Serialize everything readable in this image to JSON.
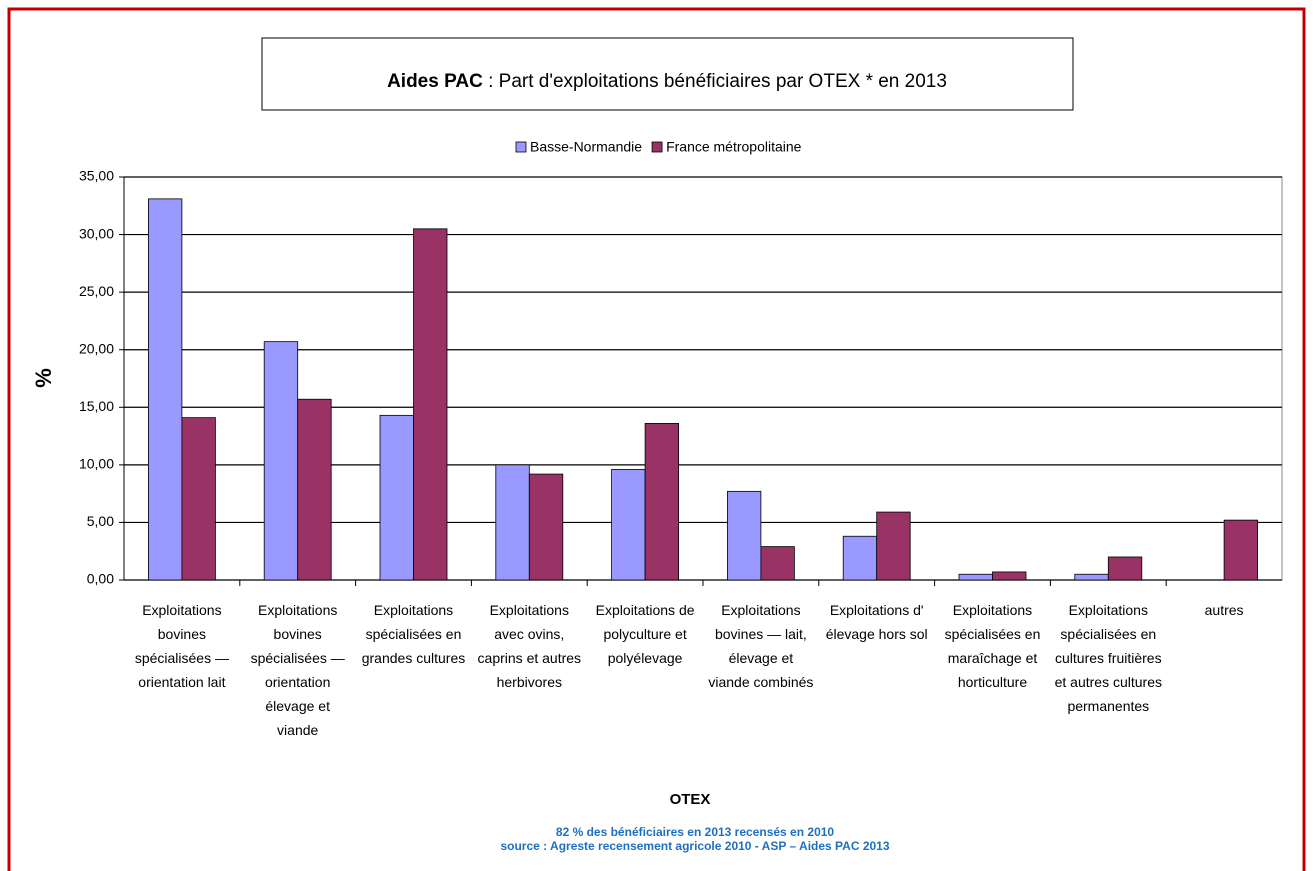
{
  "chart_data": {
    "type": "bar",
    "title_bold": "Aides PAC",
    "title": " : Part d'exploitations bénéficiaires par OTEX * en 2013",
    "xlabel": "OTEX",
    "ylabel": "%",
    "notes": [
      "82 % des bénéficiaires en 2013 recensés en 2010",
      "source : Agreste recensement agricole 2010 -  ASP – Aides PAC 2013"
    ],
    "categories": [
      "Exploitations bovines spécialisées — orientation lait",
      "Exploitations bovines spécialisées — orientation élevage et viande",
      "Exploitations spécialisées en grandes cultures",
      "Exploitations avec ovins, caprins et autres herbivores",
      "Exploitations de polyculture et polyélevage",
      "Exploitations bovines — lait, élevage et viande combinés",
      "Exploitations d' élevage hors sol",
      "Exploitations spécialisées en maraîchage et horticulture",
      "Exploitations spécialisées en cultures fruitières et autres cultures permanentes",
      "autres"
    ],
    "series": [
      {
        "name": "Basse-Normandie",
        "color": "#9999ff",
        "values": [
          33.1,
          20.7,
          14.3,
          10.0,
          9.6,
          7.7,
          3.8,
          0.5,
          0.5,
          null
        ]
      },
      {
        "name": "France métropolitaine",
        "color": "#993366",
        "values": [
          14.1,
          15.7,
          30.5,
          9.2,
          13.6,
          2.9,
          5.9,
          0.7,
          2.0,
          5.2
        ]
      }
    ],
    "ylim": [
      0,
      35
    ],
    "yticks": [
      {
        "value": 0,
        "label": "0,00"
      },
      {
        "value": 5,
        "label": "5,00"
      },
      {
        "value": 10,
        "label": "10,00"
      },
      {
        "value": 15,
        "label": "15,00"
      },
      {
        "value": 20,
        "label": "20,00"
      },
      {
        "value": 25,
        "label": "25,00"
      },
      {
        "value": 30,
        "label": "30,00"
      },
      {
        "value": 35,
        "label": "35,00"
      }
    ],
    "grid": true,
    "legend": "top"
  }
}
